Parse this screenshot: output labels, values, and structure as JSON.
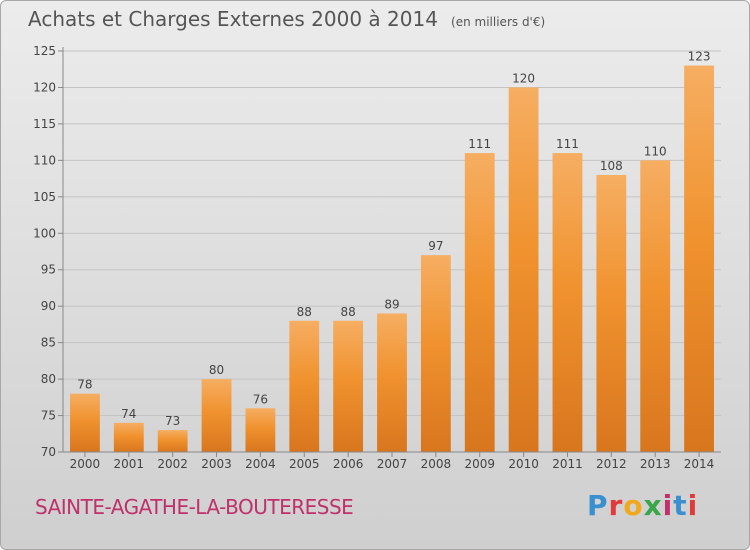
{
  "chart_data": {
    "type": "bar",
    "title": "Achats et Charges Externes 2000 à 2014",
    "unit": "(en milliers d'€)",
    "categories": [
      "2000",
      "2001",
      "2002",
      "2003",
      "2004",
      "2005",
      "2006",
      "2007",
      "2008",
      "2009",
      "2010",
      "2011",
      "2012",
      "2013",
      "2014"
    ],
    "values": [
      78,
      74,
      73,
      80,
      76,
      88,
      88,
      89,
      97,
      111,
      120,
      111,
      108,
      110,
      123
    ],
    "ylim": [
      70,
      125
    ],
    "yticks": [
      70,
      75,
      80,
      85,
      90,
      95,
      100,
      105,
      110,
      115,
      120,
      125
    ],
    "grid": true,
    "bar_color": "#f0922e",
    "bar_color_light": "#f6ae62",
    "bar_color_dark": "#d8761e"
  },
  "footer": {
    "place": "SAINTE-AGATHE-LA-BOUTERESSE",
    "logo_text": "Proxiti",
    "logo_colors": [
      "#3a8fd0",
      "#e03a3a",
      "#f2a81d",
      "#3aa64a",
      "#c0306a",
      "#3a8fd0",
      "#e03a3a"
    ]
  }
}
